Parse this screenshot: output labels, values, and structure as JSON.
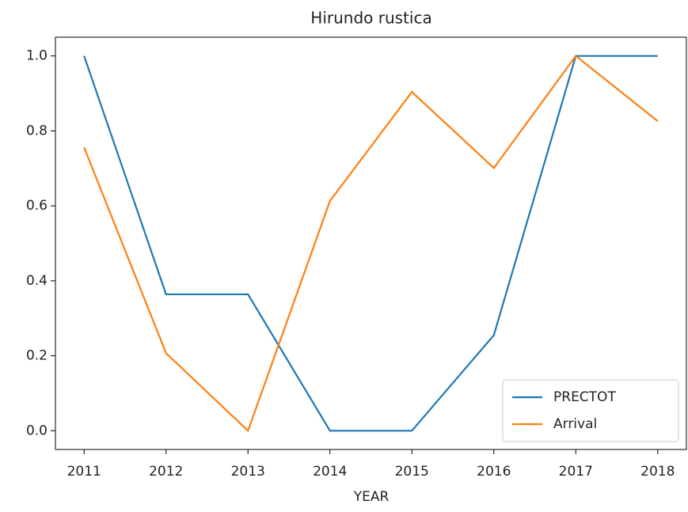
{
  "chart_data": {
    "type": "line",
    "title": "Hirundo rustica",
    "x_label": "YEAR",
    "x": [
      2011,
      2012,
      2013,
      2014,
      2015,
      2016,
      2017,
      2018
    ],
    "series": [
      {
        "name": "PRECTOT",
        "color": "#1f77b4",
        "values": [
          1.0,
          0.364,
          0.364,
          0,
          0,
          0.255,
          1.0,
          1.0
        ]
      },
      {
        "name": "Arrival",
        "color": "#ff7f0e",
        "values": [
          0.756,
          0.207,
          0,
          0.613,
          0.904,
          0.701,
          1.0,
          0.826
        ]
      }
    ],
    "xlim": [
      2010.65,
      2018.35
    ],
    "xticks": [
      2011,
      2012,
      2013,
      2014,
      2015,
      2016,
      2017,
      2018
    ],
    "ylim": [
      -0.05,
      1.05
    ],
    "yticks": [
      {
        "value": 0,
        "label": "0.0"
      },
      0.2,
      0.4,
      0.6,
      0.8,
      {
        "value": 1,
        "label": "1.0"
      }
    ],
    "grid": false,
    "legend": "lower right"
  }
}
